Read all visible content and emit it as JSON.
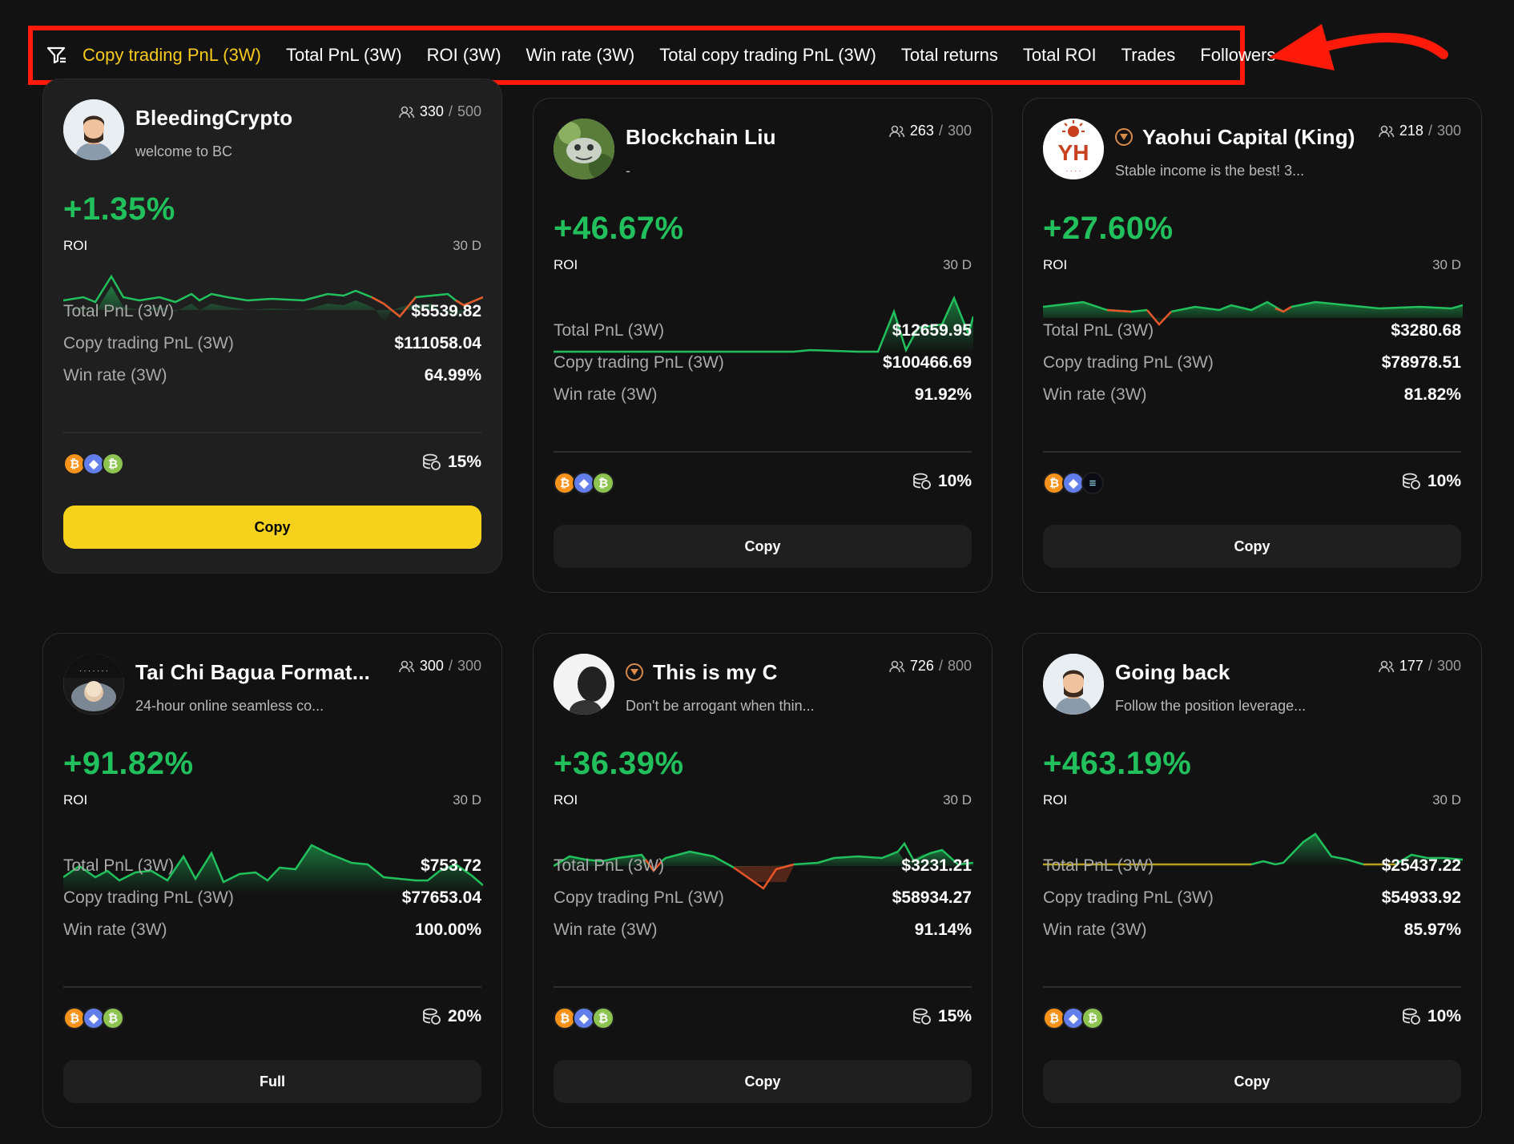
{
  "filter_tabs": [
    {
      "label": "Copy trading PnL (3W)",
      "active": true
    },
    {
      "label": "Total PnL (3W)"
    },
    {
      "label": "ROI (3W)"
    },
    {
      "label": "Win rate (3W)"
    },
    {
      "label": "Total copy trading PnL (3W)"
    },
    {
      "label": "Total returns"
    },
    {
      "label": "Total ROI"
    },
    {
      "label": "Trades"
    },
    {
      "label": "Followers"
    }
  ],
  "colors": {
    "accent": "#f7c91a",
    "positive": "#21c05c",
    "negative": "#e8562a",
    "annotation": "#ff1a0a"
  },
  "stat_labels": {
    "total_pnl": "Total PnL (3W)",
    "copy_pnl": "Copy trading PnL (3W)",
    "win_rate": "Win rate (3W)"
  },
  "roi_label": "ROI",
  "period": "30 D",
  "traders": [
    {
      "name": "BleedingCrypto",
      "bio": "welcome to BC",
      "followers": "330",
      "capacity": "500",
      "roi": "+1.35%",
      "total_pnl": "$5539.82",
      "copy_pnl": "$111058.04",
      "win_rate": "64.99%",
      "share": "15%",
      "coins": [
        "BTC",
        "ETH",
        "BCH"
      ],
      "button": "Copy",
      "badge": false
    },
    {
      "name": "Blockchain Liu",
      "bio": "-",
      "followers": "263",
      "capacity": "300",
      "roi": "+46.67%",
      "total_pnl": "$12659.95",
      "copy_pnl": "$100466.69",
      "win_rate": "91.92%",
      "share": "10%",
      "coins": [
        "BTC",
        "ETH",
        "BCH"
      ],
      "button": "Copy",
      "badge": false
    },
    {
      "name": "Yaohui Capital (King)",
      "bio": "Stable income is the best! 3...",
      "followers": "218",
      "capacity": "300",
      "roi": "+27.60%",
      "total_pnl": "$3280.68",
      "copy_pnl": "$78978.51",
      "win_rate": "81.82%",
      "share": "10%",
      "coins": [
        "BTC",
        "ETH",
        "SOL"
      ],
      "button": "Copy",
      "badge": true
    },
    {
      "name": "Tai Chi Bagua Format...",
      "bio": "24-hour online seamless co...",
      "followers": "300",
      "capacity": "300",
      "roi": "+91.82%",
      "total_pnl": "$753.72",
      "copy_pnl": "$77653.04",
      "win_rate": "100.00%",
      "share": "20%",
      "coins": [
        "BTC",
        "ETH",
        "BCH"
      ],
      "button": "Full",
      "badge": false
    },
    {
      "name": "This is my C",
      "bio": "Don't be arrogant when thin...",
      "followers": "726",
      "capacity": "800",
      "roi": "+36.39%",
      "total_pnl": "$3231.21",
      "copy_pnl": "$58934.27",
      "win_rate": "91.14%",
      "share": "15%",
      "coins": [
        "BTC",
        "ETH",
        "BCH"
      ],
      "button": "Copy",
      "badge": true
    },
    {
      "name": "Going back",
      "bio": "Follow the position leverage...",
      "followers": "177",
      "capacity": "300",
      "roi": "+463.19%",
      "total_pnl": "$25437.22",
      "copy_pnl": "$54933.92",
      "win_rate": "85.97%",
      "share": "10%",
      "coins": [
        "BTC",
        "ETH",
        "BCH"
      ],
      "button": "Copy",
      "badge": false
    }
  ]
}
